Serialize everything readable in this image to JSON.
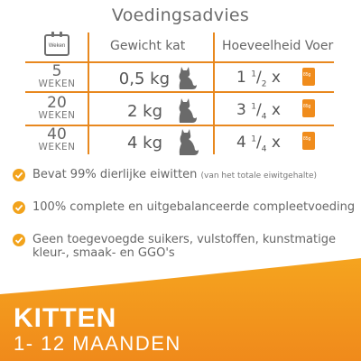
{
  "title": "Voedingsadvies",
  "table": {
    "calendar_label": "Weken",
    "headers": {
      "weight": "Gewicht kat",
      "amount": "Hoeveelheid Voer"
    },
    "rows": [
      {
        "weeks": "5",
        "weeks_label": "WEKEN",
        "weight": "0,5 kg",
        "whole": "1",
        "num": "1",
        "den": "2",
        "unit": "x",
        "pouch": "85g"
      },
      {
        "weeks": "20",
        "weeks_label": "WEKEN",
        "weight": "2 kg",
        "whole": "3",
        "num": "1",
        "den": "4",
        "unit": "x",
        "pouch": "85g"
      },
      {
        "weeks": "40",
        "weeks_label": "WEKEN",
        "weight": "4 kg",
        "whole": "4",
        "num": "1",
        "den": "4",
        "unit": "x",
        "pouch": "85g"
      }
    ]
  },
  "bullets": [
    {
      "text": "Bevat 99% dierlijke eiwitten",
      "note": "(van het totale eiwitgehalte)"
    },
    {
      "text": "100% complete en uitgebalanceerde compleetvoeding",
      "note": ""
    },
    {
      "text": "Geen toegevoegde suikers, vulstoffen, kunstmatige",
      "line2": "kleur-, smaak- en GGO's",
      "note": ""
    }
  ],
  "banner": {
    "title": "KITTEN",
    "subtitle": "1- 12 MAANDEN"
  },
  "colors": {
    "accent": "#e8881e",
    "check": "#f2a31c",
    "banner": "#f39a1e"
  },
  "icons": [
    "calendar-icon",
    "cat-icon",
    "food-pouch-icon",
    "checkmark-icon"
  ]
}
